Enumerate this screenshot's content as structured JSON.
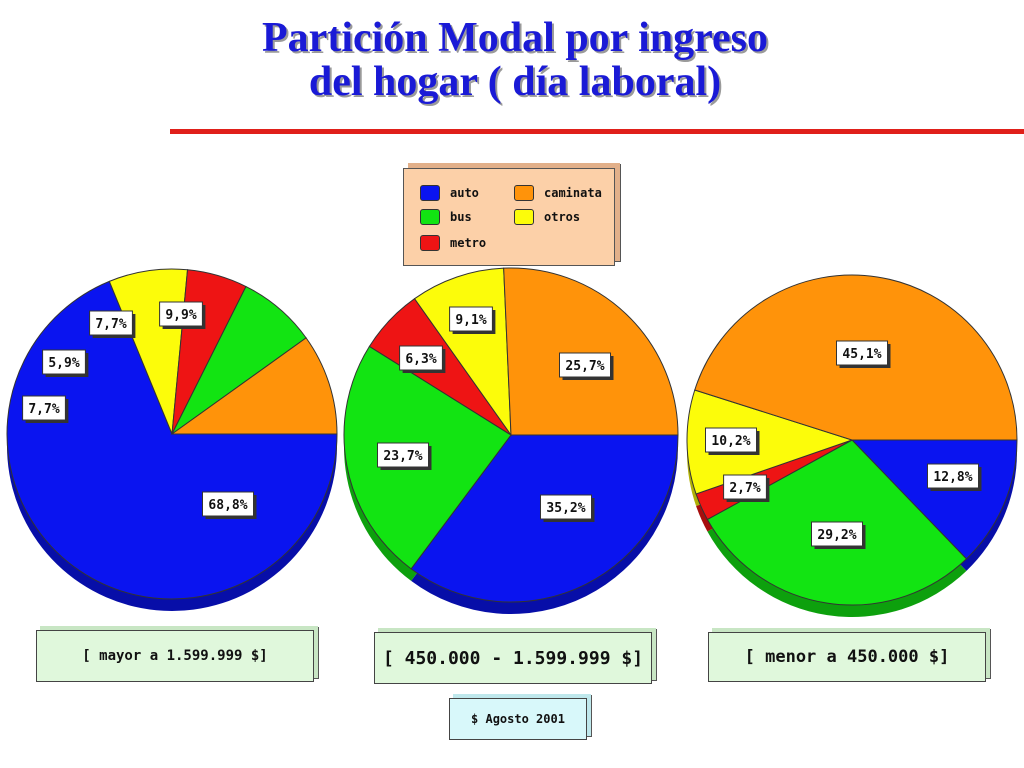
{
  "title": {
    "line1": "Partición Modal  por ingreso",
    "line2": "del hogar ( día laboral)"
  },
  "colors": {
    "auto": "#0a14f0",
    "bus": "#12e412",
    "metro": "#ee1414",
    "caminata": "#ff930a",
    "otros": "#fcfc0a",
    "title": "#1a1ad6",
    "rule": "#e0201a"
  },
  "legend": {
    "items": [
      {
        "key": "auto",
        "label": "auto"
      },
      {
        "key": "bus",
        "label": "bus"
      },
      {
        "key": "metro",
        "label": "metro"
      },
      {
        "key": "caminata",
        "label": "caminata"
      },
      {
        "key": "otros",
        "label": "otros"
      }
    ]
  },
  "chart_data": [
    {
      "type": "pie",
      "caption": "[ mayor a 1.599.999 $]",
      "slices": [
        {
          "label": "auto",
          "value": 68.8,
          "text": "68,8%"
        },
        {
          "label": "otros",
          "value": 7.7,
          "text": "7,7%"
        },
        {
          "label": "metro",
          "value": 5.9,
          "text": "5,9%"
        },
        {
          "label": "bus",
          "value": 7.7,
          "text": "7,7%"
        },
        {
          "label": "caminata",
          "value": 9.9,
          "text": "9,9%"
        }
      ]
    },
    {
      "type": "pie",
      "caption": "[ 450.000 - 1.599.999 $]",
      "slices": [
        {
          "label": "auto",
          "value": 35.2,
          "text": "35,2%"
        },
        {
          "label": "bus",
          "value": 23.7,
          "text": "23,7%"
        },
        {
          "label": "metro",
          "value": 6.3,
          "text": "6,3%"
        },
        {
          "label": "otros",
          "value": 9.1,
          "text": "9,1%"
        },
        {
          "label": "caminata",
          "value": 25.7,
          "text": "25,7%"
        }
      ]
    },
    {
      "type": "pie",
      "caption": "[ menor a 450.000 $]",
      "slices": [
        {
          "label": "auto",
          "value": 12.8,
          "text": "12,8%"
        },
        {
          "label": "bus",
          "value": 29.2,
          "text": "29,2%"
        },
        {
          "label": "metro",
          "value": 2.7,
          "text": "2,7%"
        },
        {
          "label": "otros",
          "value": 10.2,
          "text": "10,2%"
        },
        {
          "label": "caminata",
          "value": 45.1,
          "text": "45,1%"
        }
      ]
    }
  ],
  "footnote": "$ Agosto 2001"
}
